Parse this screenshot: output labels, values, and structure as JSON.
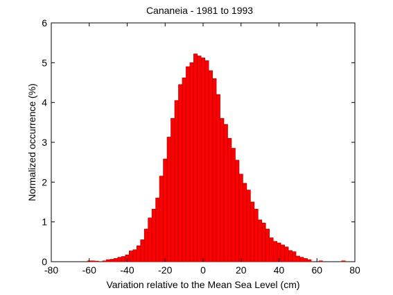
{
  "chart_data": {
    "type": "bar",
    "title": "Cananeia - 1981 to 1993",
    "xlabel": "Variation relative to the Mean Sea Level (cm)",
    "ylabel": "Normalized occurrence (%)",
    "xlim": [
      -80,
      80
    ],
    "ylim": [
      0,
      6
    ],
    "xticks": [
      -80,
      -60,
      -40,
      -20,
      0,
      20,
      40,
      60,
      80
    ],
    "yticks": [
      0,
      1,
      2,
      3,
      4,
      5,
      6
    ],
    "xtick_labels": [
      "-80",
      "-60",
      "-40",
      "-20",
      "0",
      "20",
      "40",
      "60",
      "80"
    ],
    "ytick_labels": [
      "0",
      "1",
      "2",
      "3",
      "4",
      "5",
      "6"
    ],
    "grid": false,
    "bar_color": "#ff0000",
    "bar_edge_color": "#c00000",
    "series": [
      {
        "x": [
          -60,
          -58,
          -56,
          -52,
          -50,
          -48,
          -46,
          -44,
          -42,
          -40,
          -38,
          -36,
          -34,
          -32,
          -30,
          -28,
          -26,
          -24,
          -22,
          -20,
          -18,
          -16,
          -14,
          -12,
          -10,
          -8,
          -6,
          -4,
          -2,
          0,
          2,
          4,
          6,
          8,
          10,
          12,
          14,
          16,
          18,
          20,
          22,
          24,
          26,
          28,
          30,
          32,
          34,
          36,
          38,
          40,
          42,
          44,
          46,
          48,
          50,
          52,
          54,
          56,
          62,
          74
        ],
        "values": [
          0.02,
          0.02,
          0.01,
          0.02,
          0.05,
          0.06,
          0.08,
          0.11,
          0.13,
          0.17,
          0.27,
          0.3,
          0.4,
          0.55,
          0.82,
          1.1,
          1.32,
          1.6,
          2.15,
          2.58,
          3.13,
          3.6,
          4.05,
          4.45,
          4.62,
          4.9,
          5.0,
          5.22,
          5.17,
          5.12,
          5.05,
          4.8,
          4.6,
          4.2,
          3.6,
          3.45,
          3.1,
          2.85,
          2.55,
          2.2,
          1.97,
          1.8,
          1.5,
          1.32,
          1.05,
          0.97,
          0.82,
          0.6,
          0.51,
          0.47,
          0.42,
          0.37,
          0.28,
          0.25,
          0.14,
          0.11,
          0.08,
          0.05,
          0.02,
          0.02
        ]
      }
    ]
  }
}
